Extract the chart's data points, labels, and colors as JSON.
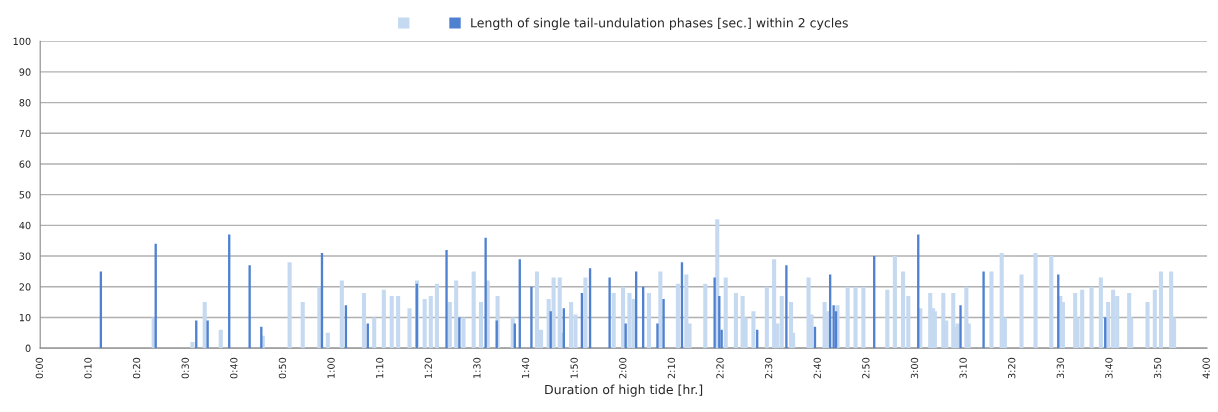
{
  "chart_data": {
    "type": "bar",
    "xlabel": "Duration of high tide [hr.]",
    "xlim": [
      0,
      4
    ],
    "ylim": [
      0,
      100
    ],
    "xticks": [
      {
        "value": 0,
        "label": "0:00"
      },
      {
        "value": 0.1667,
        "label": "0:10"
      },
      {
        "value": 0.3333,
        "label": "0:20"
      },
      {
        "value": 0.5,
        "label": "0:30"
      },
      {
        "value": 0.6667,
        "label": "0:40"
      },
      {
        "value": 0.8333,
        "label": "0:50"
      },
      {
        "value": 1,
        "label": "1:00"
      },
      {
        "value": 1.1667,
        "label": "1:10"
      },
      {
        "value": 1.3333,
        "label": "1:20"
      },
      {
        "value": 1.5,
        "label": "1:30"
      },
      {
        "value": 1.6667,
        "label": "1:40"
      },
      {
        "value": 1.8333,
        "label": "1:50"
      },
      {
        "value": 2,
        "label": "2:00"
      },
      {
        "value": 2.1667,
        "label": "2:10"
      },
      {
        "value": 2.3333,
        "label": "2:20"
      },
      {
        "value": 2.5,
        "label": "2:30"
      },
      {
        "value": 2.6667,
        "label": "2:40"
      },
      {
        "value": 2.8333,
        "label": "2:50"
      },
      {
        "value": 3,
        "label": "3:00"
      },
      {
        "value": 3.1667,
        "label": "3:10"
      },
      {
        "value": 3.3333,
        "label": "3:20"
      },
      {
        "value": 3.5,
        "label": "3:30"
      },
      {
        "value": 3.6667,
        "label": "3:40"
      },
      {
        "value": 3.8333,
        "label": "3:50"
      },
      {
        "value": 4,
        "label": "4:00"
      }
    ],
    "yticks": [
      0,
      10,
      20,
      30,
      40,
      50,
      60,
      70,
      80,
      90,
      100
    ],
    "grid": "y",
    "legend": "top",
    "series": [
      {
        "color": "#c5d9f1",
        "x": [
          0.389,
          0.522,
          0.564,
          0.619,
          0.763,
          0.855,
          0.9,
          0.957,
          0.986,
          1.034,
          1.11,
          1.145,
          1.178,
          1.205,
          1.227,
          1.266,
          1.292,
          1.318,
          1.339,
          1.36,
          1.404,
          1.426,
          1.451,
          1.486,
          1.511,
          1.534,
          1.568,
          1.62,
          1.703,
          1.717,
          1.743,
          1.76,
          1.781,
          1.789,
          1.82,
          1.835,
          1.869,
          1.966,
          1.998,
          2.02,
          2.034,
          2.087,
          2.126,
          2.186,
          2.215,
          2.226,
          2.28,
          2.321,
          2.35,
          2.385,
          2.408,
          2.418,
          2.445,
          2.491,
          2.516,
          2.527,
          2.542,
          2.574,
          2.581,
          2.634,
          2.644,
          2.689,
          2.702,
          2.733,
          2.768,
          2.795,
          2.822,
          2.904,
          2.93,
          2.958,
          2.976,
          3.017,
          3.051,
          3.061,
          3.067,
          3.096,
          3.106,
          3.13,
          3.136,
          3.145,
          3.175,
          3.183,
          3.261,
          3.296,
          3.307,
          3.364,
          3.412,
          3.466,
          3.497,
          3.506,
          3.548,
          3.556,
          3.572,
          3.604,
          3.636,
          3.661,
          3.678,
          3.692,
          3.733,
          3.74,
          3.796,
          3.821,
          3.842,
          3.877,
          3.887
        ],
        "values": [
          10,
          2,
          15,
          6,
          4,
          28,
          15,
          20,
          5,
          22,
          18,
          10,
          19,
          17,
          17,
          13,
          22,
          16,
          17,
          21,
          15,
          22,
          10,
          25,
          15,
          22,
          17,
          10,
          25,
          6,
          16,
          23,
          23,
          5,
          15,
          11,
          23,
          18,
          20,
          18,
          16,
          18,
          25,
          21,
          24,
          8,
          21,
          42,
          23,
          18,
          17,
          10,
          12,
          20,
          29,
          8,
          17,
          15,
          5,
          23,
          11,
          15,
          12,
          14,
          20,
          20,
          20,
          19,
          30,
          25,
          17,
          13,
          18,
          13,
          12,
          18,
          9,
          18,
          7,
          8,
          20,
          8,
          25,
          31,
          10,
          24,
          31,
          30,
          17,
          15,
          18,
          10,
          19,
          20,
          23,
          15,
          19,
          17,
          18,
          10,
          15,
          19,
          25,
          25,
          10
        ]
      },
      {
        "name": "Length of single tail-undulation phases [sec.] within 2 cycles",
        "color": "#4f81d0",
        "x": [
          0.208,
          0.396,
          0.535,
          0.574,
          0.648,
          0.718,
          0.758,
          0.966,
          1.048,
          1.123,
          1.291,
          1.393,
          1.437,
          1.527,
          1.565,
          1.627,
          1.644,
          1.684,
          1.75,
          1.795,
          1.857,
          1.885,
          1.952,
          2.007,
          2.043,
          2.067,
          2.116,
          2.137,
          2.2,
          2.312,
          2.328,
          2.336,
          2.458,
          2.558,
          2.656,
          2.708,
          2.72,
          2.728,
          2.859,
          3.01,
          3.155,
          3.234,
          3.49,
          3.651
        ],
        "values": [
          25,
          34,
          9,
          9,
          37,
          27,
          7,
          31,
          14,
          8,
          21,
          32,
          10,
          36,
          9,
          8,
          29,
          20,
          12,
          13,
          18,
          26,
          23,
          8,
          25,
          20,
          8,
          16,
          28,
          23,
          17,
          6,
          6,
          27,
          7,
          24,
          14,
          12,
          30,
          37,
          14,
          25,
          24,
          10
        ]
      }
    ]
  }
}
